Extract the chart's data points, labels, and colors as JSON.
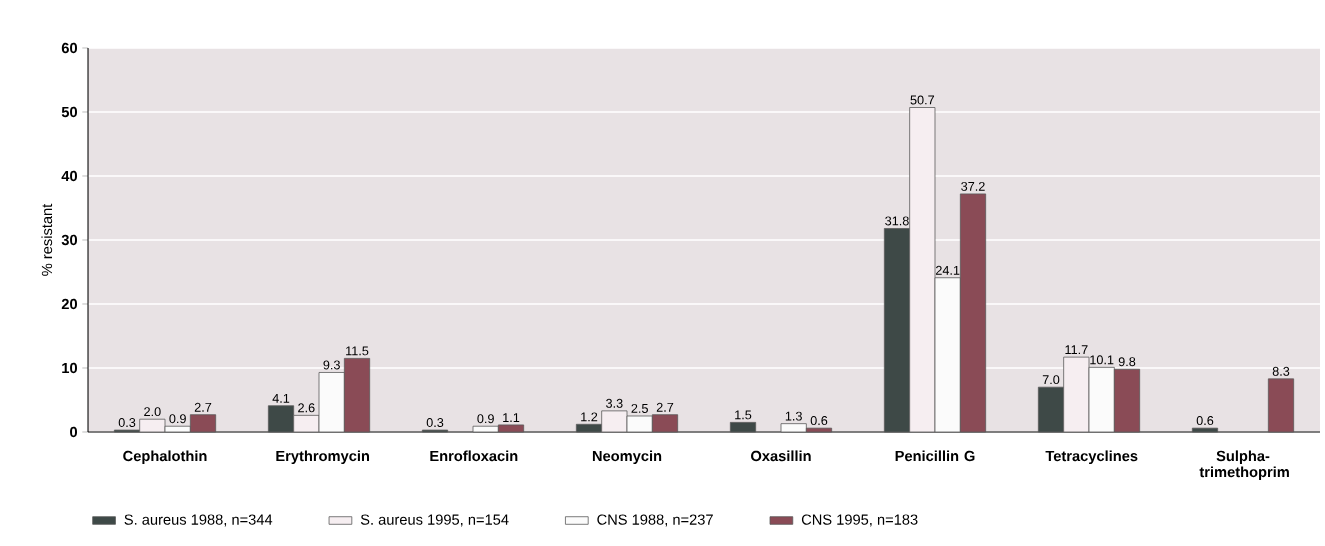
{
  "chart_data": {
    "type": "bar",
    "ylabel": "% resistant",
    "categories": [
      "Cephalothin",
      "Erythromycin",
      "Enrofloxacin",
      "Neomycin",
      "Oxasillin",
      "Penicillin G",
      "Tetracyclines",
      "Sulpha-trimethoprim"
    ],
    "series": [
      {
        "name": "S. aureus 1988, n=344",
        "color": "#3e4947",
        "values": [
          0.3,
          4.1,
          0.3,
          1.2,
          1.5,
          31.8,
          7.0,
          0.6
        ],
        "value_labels": [
          "0.3",
          "4.1",
          "0.3",
          "1.2",
          "1.5",
          "31.8",
          "7.0",
          "0.6"
        ]
      },
      {
        "name": "S. aureus 1995, n=154",
        "color": "#f6eef1",
        "values": [
          2.0,
          2.6,
          null,
          3.3,
          null,
          50.7,
          11.7,
          null
        ],
        "value_labels": [
          "2.0",
          "2.6",
          null,
          "3.3",
          null,
          "50.7",
          "11.7",
          null
        ]
      },
      {
        "name": "CNS 1988, n=237",
        "color": "#fbfbfb",
        "values": [
          0.9,
          9.3,
          0.9,
          2.5,
          1.3,
          24.1,
          10.1,
          null
        ],
        "value_labels": [
          "0.9",
          "9.3",
          "0.9",
          "2.5",
          "1.3",
          "24.1",
          "10.1",
          null
        ]
      },
      {
        "name": "CNS 1995, n=183",
        "color": "#8a4b56",
        "values": [
          2.7,
          11.5,
          1.1,
          2.7,
          0.6,
          37.2,
          9.8,
          8.3
        ],
        "value_labels": [
          "2.7",
          "11.5",
          "1.1",
          "2.7",
          "0.6",
          "37.2",
          "9.8",
          "8.3"
        ]
      }
    ],
    "ylim": [
      0,
      60
    ],
    "yticks": [
      0,
      10,
      20,
      30,
      40,
      50,
      60
    ],
    "grid": "y",
    "legend": "bottom"
  }
}
